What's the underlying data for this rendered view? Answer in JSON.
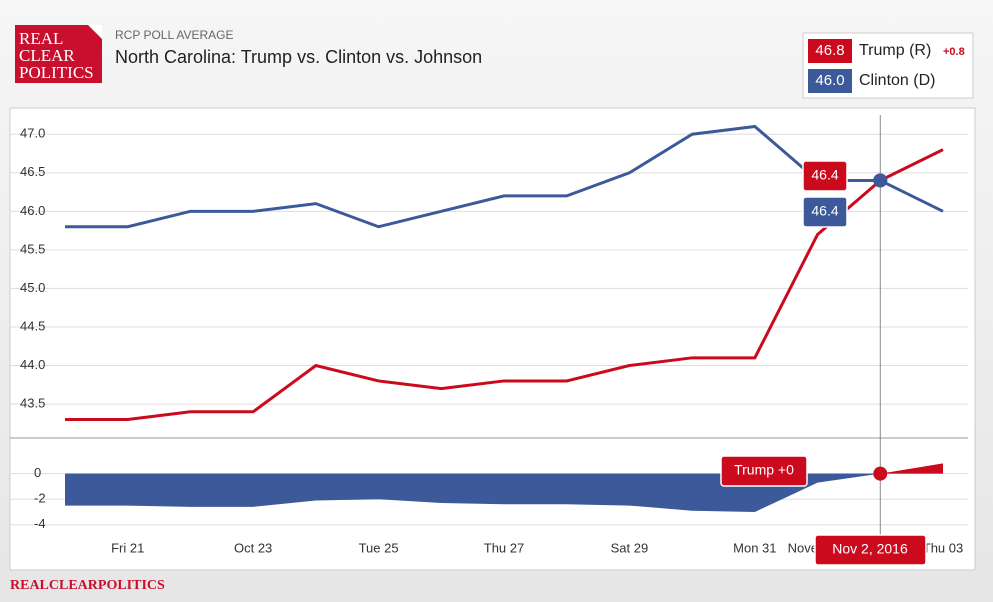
{
  "logo": "REAL CLEAR POLITICS",
  "footer": "REALCLEARPOLITICS",
  "chart_data": {
    "type": "line",
    "kicker": "RCP POLL AVERAGE",
    "title": "North Carolina: Trump vs. Clinton vs. Johnson",
    "categories": [
      null,
      "Fri 21",
      null,
      "Oct 23",
      null,
      "Tue 25",
      null,
      "Thu 27",
      null,
      "Sat 29",
      null,
      "Mon 31",
      "November",
      null,
      "Thu 03"
    ],
    "series": [
      {
        "name": "Trump (R)",
        "color": "#cc0a1e",
        "current": "46.8",
        "lead": "+0.8",
        "values": [
          43.3,
          43.3,
          43.4,
          43.4,
          44.0,
          43.8,
          43.7,
          43.8,
          43.8,
          44.0,
          44.1,
          44.1,
          45.7,
          46.4,
          46.8
        ]
      },
      {
        "name": "Clinton (D)",
        "color": "#3c5a99",
        "current": "46.0",
        "values": [
          45.8,
          45.8,
          46.0,
          46.0,
          46.1,
          45.8,
          46.0,
          46.2,
          46.2,
          46.5,
          47.0,
          47.1,
          46.4,
          46.4,
          46.0
        ]
      }
    ],
    "ylim": [
      43.06,
      47.34
    ],
    "yticks": [
      {
        "value": 43.5,
        "label": "43.5"
      },
      {
        "value": 44,
        "label": "44.0"
      },
      {
        "value": 44.5,
        "label": "44.5"
      },
      {
        "value": 45,
        "label": "45.0"
      },
      {
        "value": 45.5,
        "label": "45.5"
      },
      {
        "value": 46,
        "label": "46.0"
      },
      {
        "value": 46.5,
        "label": "46.5"
      },
      {
        "value": 47,
        "label": "47.0"
      }
    ],
    "grid": true,
    "spread": {
      "values": [
        -2.5,
        -2.5,
        -2.6,
        -2.6,
        -2.1,
        -2.0,
        -2.3,
        -2.4,
        -2.4,
        -2.5,
        -2.9,
        -3.0,
        -0.7,
        0,
        0.8
      ],
      "ylim": [
        -4.8,
        1.3
      ],
      "yticks": [
        0,
        -2,
        -4
      ],
      "positive_color": "#cc0a1e",
      "negative_color": "#3c5a99"
    },
    "hover": {
      "date": "Nov 2, 2016",
      "spread_label": "Trump +0"
    }
  }
}
